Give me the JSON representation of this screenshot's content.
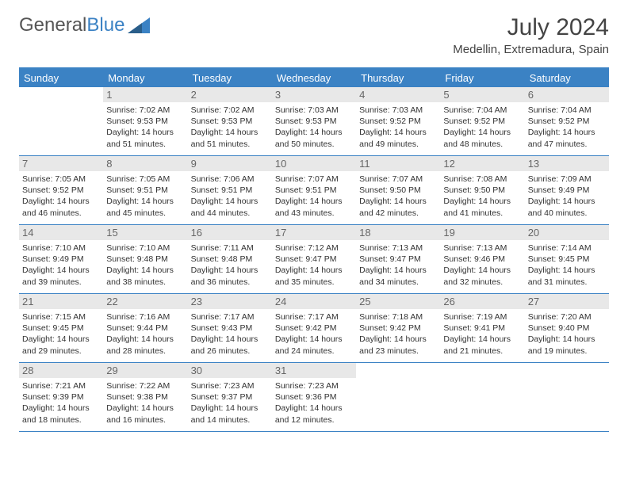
{
  "logo": {
    "text_gray": "General",
    "text_blue": "Blue"
  },
  "title": "July 2024",
  "location": "Medellin, Extremadura, Spain",
  "colors": {
    "header_bg": "#3b82c4",
    "header_text": "#ffffff",
    "daynum_bg": "#e8e8e8",
    "daynum_text": "#666666",
    "body_text": "#333333",
    "logo_gray": "#555555",
    "logo_blue": "#3b82c4",
    "border": "#3b82c4",
    "page_bg": "#ffffff"
  },
  "typography": {
    "title_fontsize": 30,
    "location_fontsize": 15,
    "dayheader_fontsize": 13,
    "daynum_fontsize": 13,
    "info_fontsize": 10.5,
    "logo_fontsize": 24
  },
  "day_names": [
    "Sunday",
    "Monday",
    "Tuesday",
    "Wednesday",
    "Thursday",
    "Friday",
    "Saturday"
  ],
  "weeks": [
    [
      {
        "n": "",
        "sunrise": "",
        "sunset": "",
        "daylight": ""
      },
      {
        "n": "1",
        "sunrise": "Sunrise: 7:02 AM",
        "sunset": "Sunset: 9:53 PM",
        "daylight": "Daylight: 14 hours and 51 minutes."
      },
      {
        "n": "2",
        "sunrise": "Sunrise: 7:02 AM",
        "sunset": "Sunset: 9:53 PM",
        "daylight": "Daylight: 14 hours and 51 minutes."
      },
      {
        "n": "3",
        "sunrise": "Sunrise: 7:03 AM",
        "sunset": "Sunset: 9:53 PM",
        "daylight": "Daylight: 14 hours and 50 minutes."
      },
      {
        "n": "4",
        "sunrise": "Sunrise: 7:03 AM",
        "sunset": "Sunset: 9:52 PM",
        "daylight": "Daylight: 14 hours and 49 minutes."
      },
      {
        "n": "5",
        "sunrise": "Sunrise: 7:04 AM",
        "sunset": "Sunset: 9:52 PM",
        "daylight": "Daylight: 14 hours and 48 minutes."
      },
      {
        "n": "6",
        "sunrise": "Sunrise: 7:04 AM",
        "sunset": "Sunset: 9:52 PM",
        "daylight": "Daylight: 14 hours and 47 minutes."
      }
    ],
    [
      {
        "n": "7",
        "sunrise": "Sunrise: 7:05 AM",
        "sunset": "Sunset: 9:52 PM",
        "daylight": "Daylight: 14 hours and 46 minutes."
      },
      {
        "n": "8",
        "sunrise": "Sunrise: 7:05 AM",
        "sunset": "Sunset: 9:51 PM",
        "daylight": "Daylight: 14 hours and 45 minutes."
      },
      {
        "n": "9",
        "sunrise": "Sunrise: 7:06 AM",
        "sunset": "Sunset: 9:51 PM",
        "daylight": "Daylight: 14 hours and 44 minutes."
      },
      {
        "n": "10",
        "sunrise": "Sunrise: 7:07 AM",
        "sunset": "Sunset: 9:51 PM",
        "daylight": "Daylight: 14 hours and 43 minutes."
      },
      {
        "n": "11",
        "sunrise": "Sunrise: 7:07 AM",
        "sunset": "Sunset: 9:50 PM",
        "daylight": "Daylight: 14 hours and 42 minutes."
      },
      {
        "n": "12",
        "sunrise": "Sunrise: 7:08 AM",
        "sunset": "Sunset: 9:50 PM",
        "daylight": "Daylight: 14 hours and 41 minutes."
      },
      {
        "n": "13",
        "sunrise": "Sunrise: 7:09 AM",
        "sunset": "Sunset: 9:49 PM",
        "daylight": "Daylight: 14 hours and 40 minutes."
      }
    ],
    [
      {
        "n": "14",
        "sunrise": "Sunrise: 7:10 AM",
        "sunset": "Sunset: 9:49 PM",
        "daylight": "Daylight: 14 hours and 39 minutes."
      },
      {
        "n": "15",
        "sunrise": "Sunrise: 7:10 AM",
        "sunset": "Sunset: 9:48 PM",
        "daylight": "Daylight: 14 hours and 38 minutes."
      },
      {
        "n": "16",
        "sunrise": "Sunrise: 7:11 AM",
        "sunset": "Sunset: 9:48 PM",
        "daylight": "Daylight: 14 hours and 36 minutes."
      },
      {
        "n": "17",
        "sunrise": "Sunrise: 7:12 AM",
        "sunset": "Sunset: 9:47 PM",
        "daylight": "Daylight: 14 hours and 35 minutes."
      },
      {
        "n": "18",
        "sunrise": "Sunrise: 7:13 AM",
        "sunset": "Sunset: 9:47 PM",
        "daylight": "Daylight: 14 hours and 34 minutes."
      },
      {
        "n": "19",
        "sunrise": "Sunrise: 7:13 AM",
        "sunset": "Sunset: 9:46 PM",
        "daylight": "Daylight: 14 hours and 32 minutes."
      },
      {
        "n": "20",
        "sunrise": "Sunrise: 7:14 AM",
        "sunset": "Sunset: 9:45 PM",
        "daylight": "Daylight: 14 hours and 31 minutes."
      }
    ],
    [
      {
        "n": "21",
        "sunrise": "Sunrise: 7:15 AM",
        "sunset": "Sunset: 9:45 PM",
        "daylight": "Daylight: 14 hours and 29 minutes."
      },
      {
        "n": "22",
        "sunrise": "Sunrise: 7:16 AM",
        "sunset": "Sunset: 9:44 PM",
        "daylight": "Daylight: 14 hours and 28 minutes."
      },
      {
        "n": "23",
        "sunrise": "Sunrise: 7:17 AM",
        "sunset": "Sunset: 9:43 PM",
        "daylight": "Daylight: 14 hours and 26 minutes."
      },
      {
        "n": "24",
        "sunrise": "Sunrise: 7:17 AM",
        "sunset": "Sunset: 9:42 PM",
        "daylight": "Daylight: 14 hours and 24 minutes."
      },
      {
        "n": "25",
        "sunrise": "Sunrise: 7:18 AM",
        "sunset": "Sunset: 9:42 PM",
        "daylight": "Daylight: 14 hours and 23 minutes."
      },
      {
        "n": "26",
        "sunrise": "Sunrise: 7:19 AM",
        "sunset": "Sunset: 9:41 PM",
        "daylight": "Daylight: 14 hours and 21 minutes."
      },
      {
        "n": "27",
        "sunrise": "Sunrise: 7:20 AM",
        "sunset": "Sunset: 9:40 PM",
        "daylight": "Daylight: 14 hours and 19 minutes."
      }
    ],
    [
      {
        "n": "28",
        "sunrise": "Sunrise: 7:21 AM",
        "sunset": "Sunset: 9:39 PM",
        "daylight": "Daylight: 14 hours and 18 minutes."
      },
      {
        "n": "29",
        "sunrise": "Sunrise: 7:22 AM",
        "sunset": "Sunset: 9:38 PM",
        "daylight": "Daylight: 14 hours and 16 minutes."
      },
      {
        "n": "30",
        "sunrise": "Sunrise: 7:23 AM",
        "sunset": "Sunset: 9:37 PM",
        "daylight": "Daylight: 14 hours and 14 minutes."
      },
      {
        "n": "31",
        "sunrise": "Sunrise: 7:23 AM",
        "sunset": "Sunset: 9:36 PM",
        "daylight": "Daylight: 14 hours and 12 minutes."
      },
      {
        "n": "",
        "sunrise": "",
        "sunset": "",
        "daylight": ""
      },
      {
        "n": "",
        "sunrise": "",
        "sunset": "",
        "daylight": ""
      },
      {
        "n": "",
        "sunrise": "",
        "sunset": "",
        "daylight": ""
      }
    ]
  ]
}
